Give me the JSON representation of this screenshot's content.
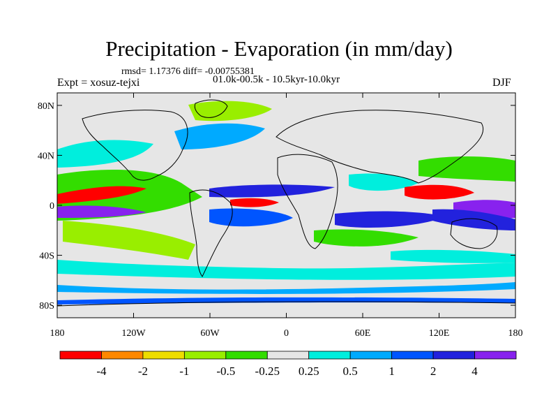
{
  "title": "Precipitation - Evaporation (in mm/day)",
  "stats": "rmsd= 1.17376 diff= -0.00755381",
  "experiment": "Expt = xosuz-tejxi",
  "period": "01.0k-00.5k - 10.5kyr-10.0kyr",
  "season": "DJF",
  "map": {
    "lon_range": [
      -180,
      180
    ],
    "lat_range": [
      -90,
      90
    ],
    "lat_ticks": [
      {
        "value": 80,
        "label": "80N"
      },
      {
        "value": 40,
        "label": "40N"
      },
      {
        "value": 0,
        "label": "0"
      },
      {
        "value": -40,
        "label": "40S"
      },
      {
        "value": -80,
        "label": "80S"
      }
    ],
    "lon_ticks": [
      {
        "value": -180,
        "label": "180"
      },
      {
        "value": -120,
        "label": "120W"
      },
      {
        "value": -60,
        "label": "60W"
      },
      {
        "value": 0,
        "label": "0"
      },
      {
        "value": 60,
        "label": "60E"
      },
      {
        "value": 120,
        "label": "120E"
      },
      {
        "value": 180,
        "label": "180"
      }
    ]
  },
  "colorbar": {
    "labels": [
      "-4",
      "-2",
      "-1",
      "-0.5",
      "-0.25",
      "0.25",
      "0.5",
      "1",
      "2",
      "4"
    ],
    "colors": [
      "#ff0000",
      "#ff8800",
      "#eedd00",
      "#99ee00",
      "#33dd00",
      "#e6e6e6",
      "#00eedd",
      "#00aaff",
      "#0055ff",
      "#2222dd",
      "#8822ee"
    ]
  }
}
